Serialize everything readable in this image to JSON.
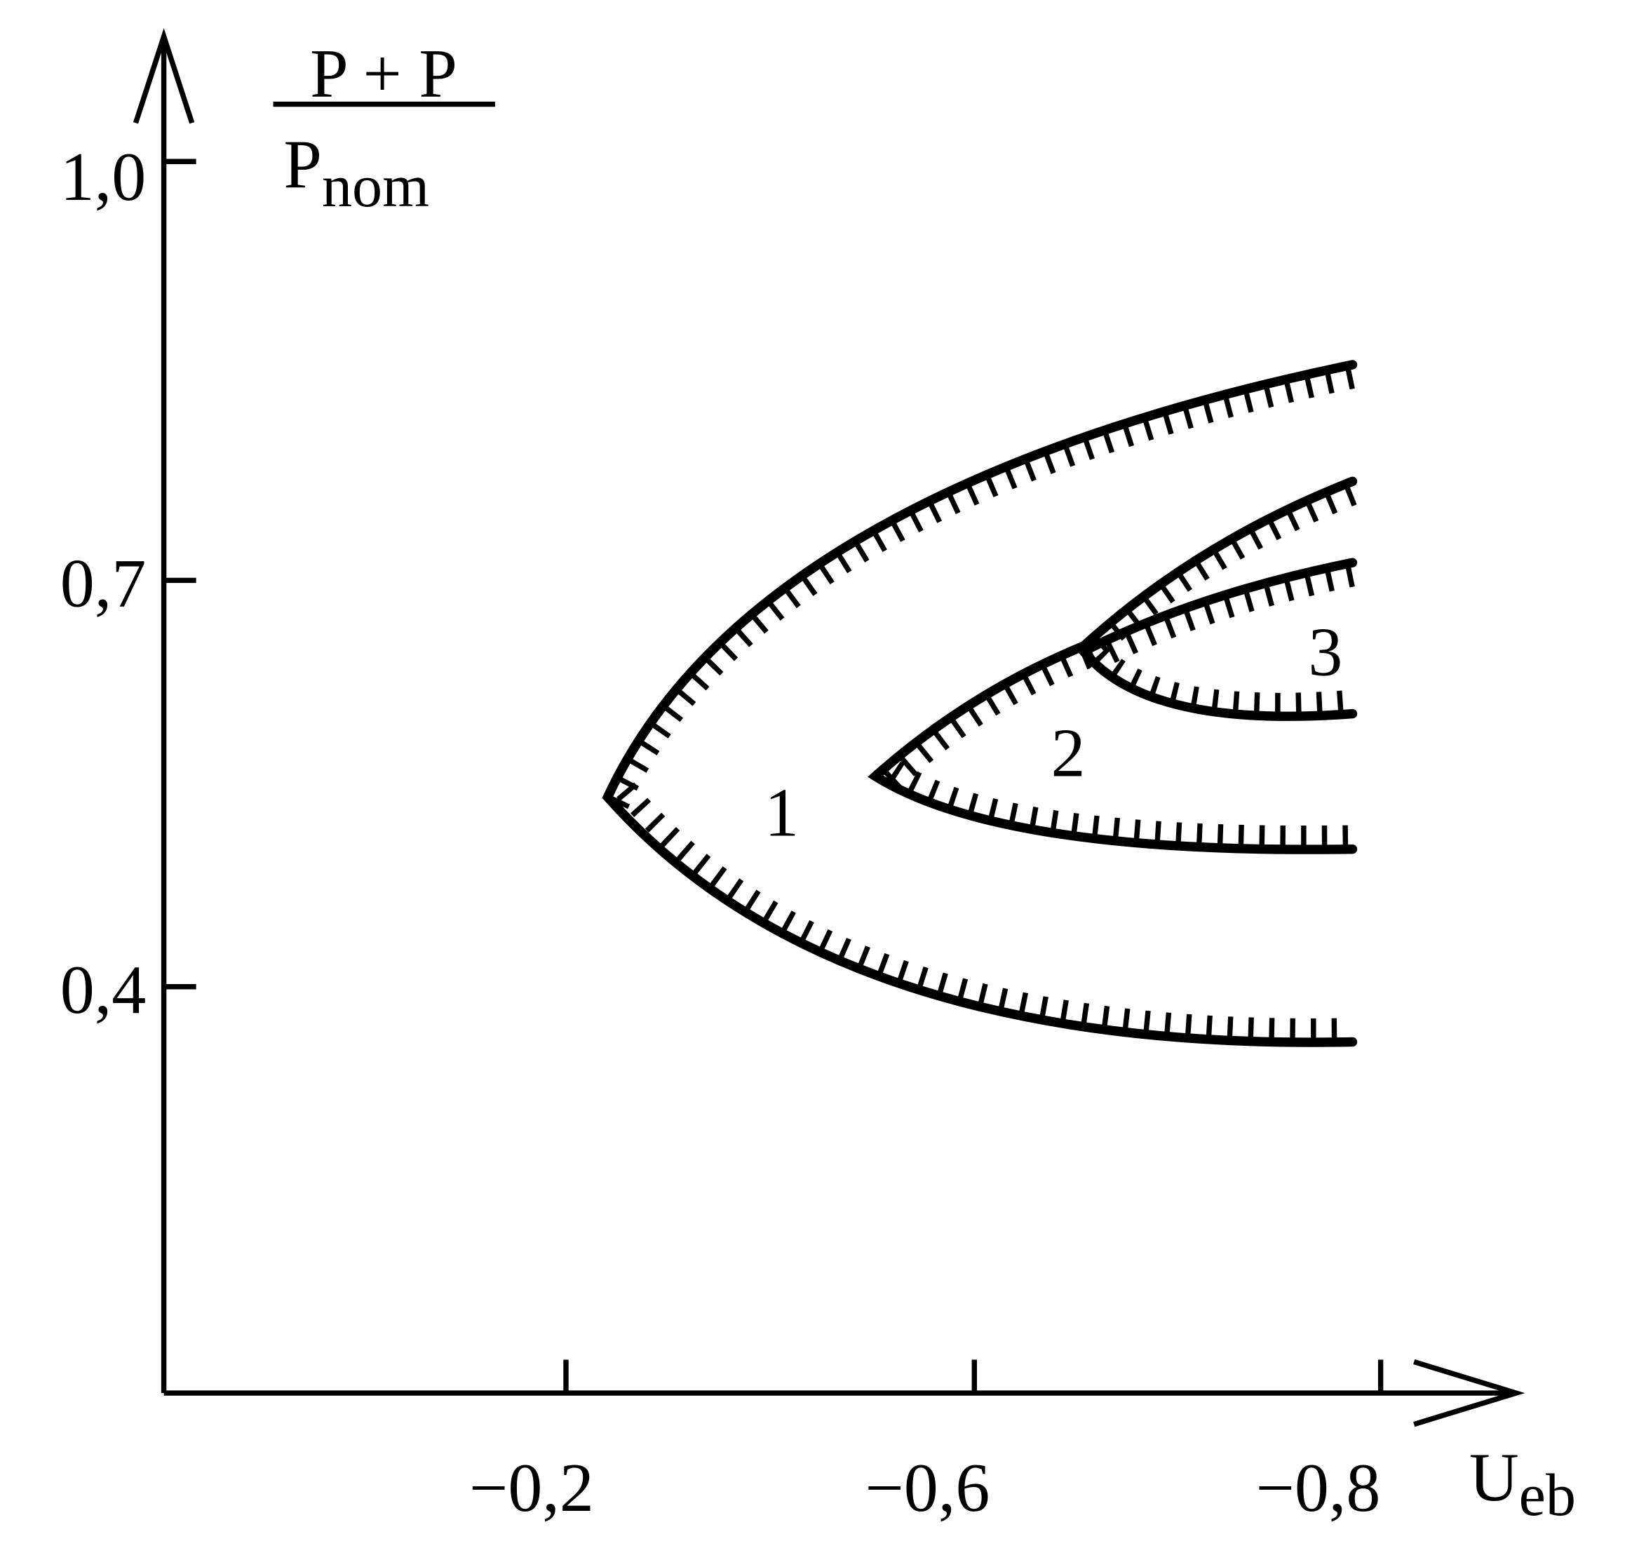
{
  "axes": {
    "y_label": {
      "numerator": "P + P",
      "denominator": "P",
      "denominator_sub": "nom"
    },
    "x_label": {
      "main": "U",
      "sub": "eb"
    },
    "y_ticks": [
      "1,0",
      "0,7",
      "0,4"
    ],
    "x_ticks": [
      "−0,2",
      "−0,6",
      "−0,8"
    ]
  },
  "regions": [
    "1",
    "2",
    "3"
  ]
}
